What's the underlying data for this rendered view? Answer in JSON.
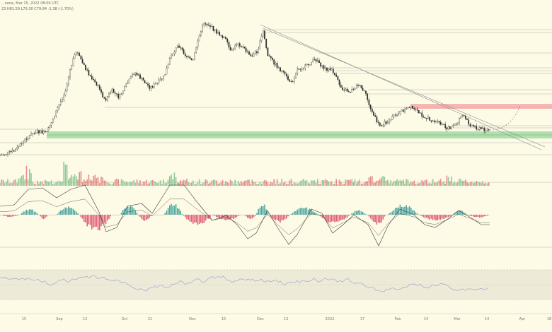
{
  "header": {
    "line1": "...oone, Mar 15, 2022 08:09 UTC",
    "line2": "23  H81.59  L79.30  C79.84  -1.38 (-1.70%)"
  },
  "chart_data": {
    "type": "line",
    "x_labels": [
      "15",
      "Sep",
      "13",
      "Oct",
      "21",
      "Nov",
      "15",
      "Dec",
      "13",
      "2022",
      "17",
      "Feb",
      "14",
      "Mar",
      "14",
      "Apr",
      "18"
    ],
    "colors": {
      "background": "#fdfbe6",
      "candle": "#2a2a2a",
      "volume_up": "#7fbf8a",
      "volume_down": "#e07a7a",
      "hist_up": "#4fa8a0",
      "hist_down": "#e0607a",
      "rsi_line": "#9a9ac8",
      "rsi_band": "#e6e2d2",
      "support_zone": "#9ed8a0",
      "resistance_zone": "#f2a0a0"
    }
  }
}
